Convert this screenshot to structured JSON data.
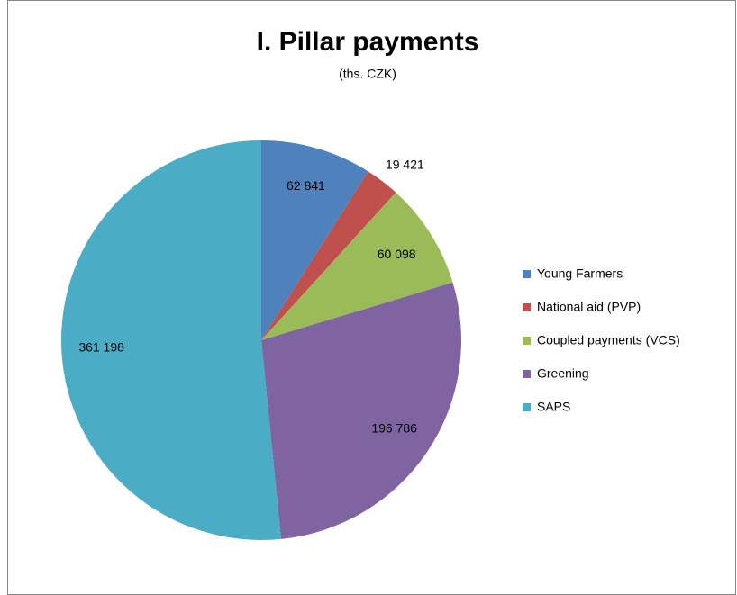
{
  "chart_data": {
    "type": "pie",
    "title": "I. Pillar payments",
    "subtitle": "(ths. CZK)",
    "categories": [
      "Young Farmers",
      "National aid (PVP)",
      "Coupled payments (VCS)",
      "Greening",
      "SAPS"
    ],
    "values": [
      62841,
      19421,
      60098,
      196786,
      361198
    ],
    "value_labels": [
      "62 841",
      "19 421",
      "60 098",
      "196 786",
      "361 198"
    ],
    "colors": [
      "#4f81bd",
      "#c0504d",
      "#9bbb59",
      "#8064a2",
      "#4bacc6"
    ],
    "legend": "right"
  }
}
